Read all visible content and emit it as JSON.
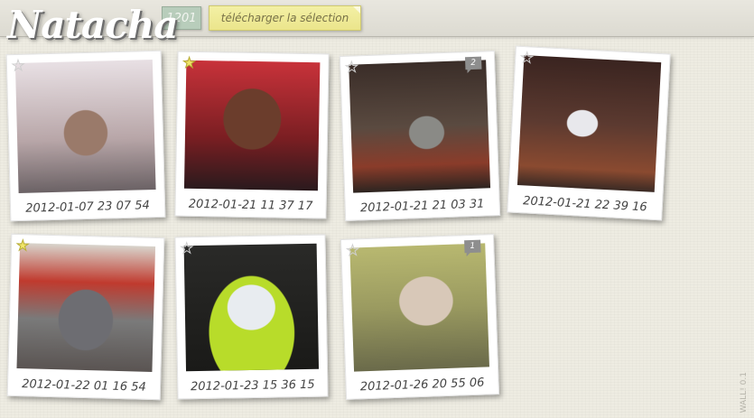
{
  "header": {
    "logo": "Natacha",
    "counter": "1201",
    "download_label": "télécharger la sélection"
  },
  "photos": [
    {
      "caption": "2012-01-07 23 07 54",
      "starred": false,
      "badge": ""
    },
    {
      "caption": "2012-01-21 11 37 17",
      "starred": true,
      "badge": ""
    },
    {
      "caption": "2012-01-21 21 03 31",
      "starred": false,
      "badge": "2"
    },
    {
      "caption": "2012-01-21 22 39 16",
      "starred": false,
      "badge": ""
    },
    {
      "caption": "2012-01-22 01 16 54",
      "starred": true,
      "badge": ""
    },
    {
      "caption": "2012-01-23 15 36 15",
      "starred": false,
      "badge": ""
    },
    {
      "caption": "2012-01-26 20 55 06",
      "starred": false,
      "badge": "1"
    }
  ],
  "icons": {
    "star": "star-icon",
    "comment": "comment-badge-icon"
  },
  "colors": {
    "star_on": "#f1e56a",
    "download_bg": "#ebe58c",
    "counter_bg": "#b8cdbb"
  },
  "version": "WALL! 0.1"
}
